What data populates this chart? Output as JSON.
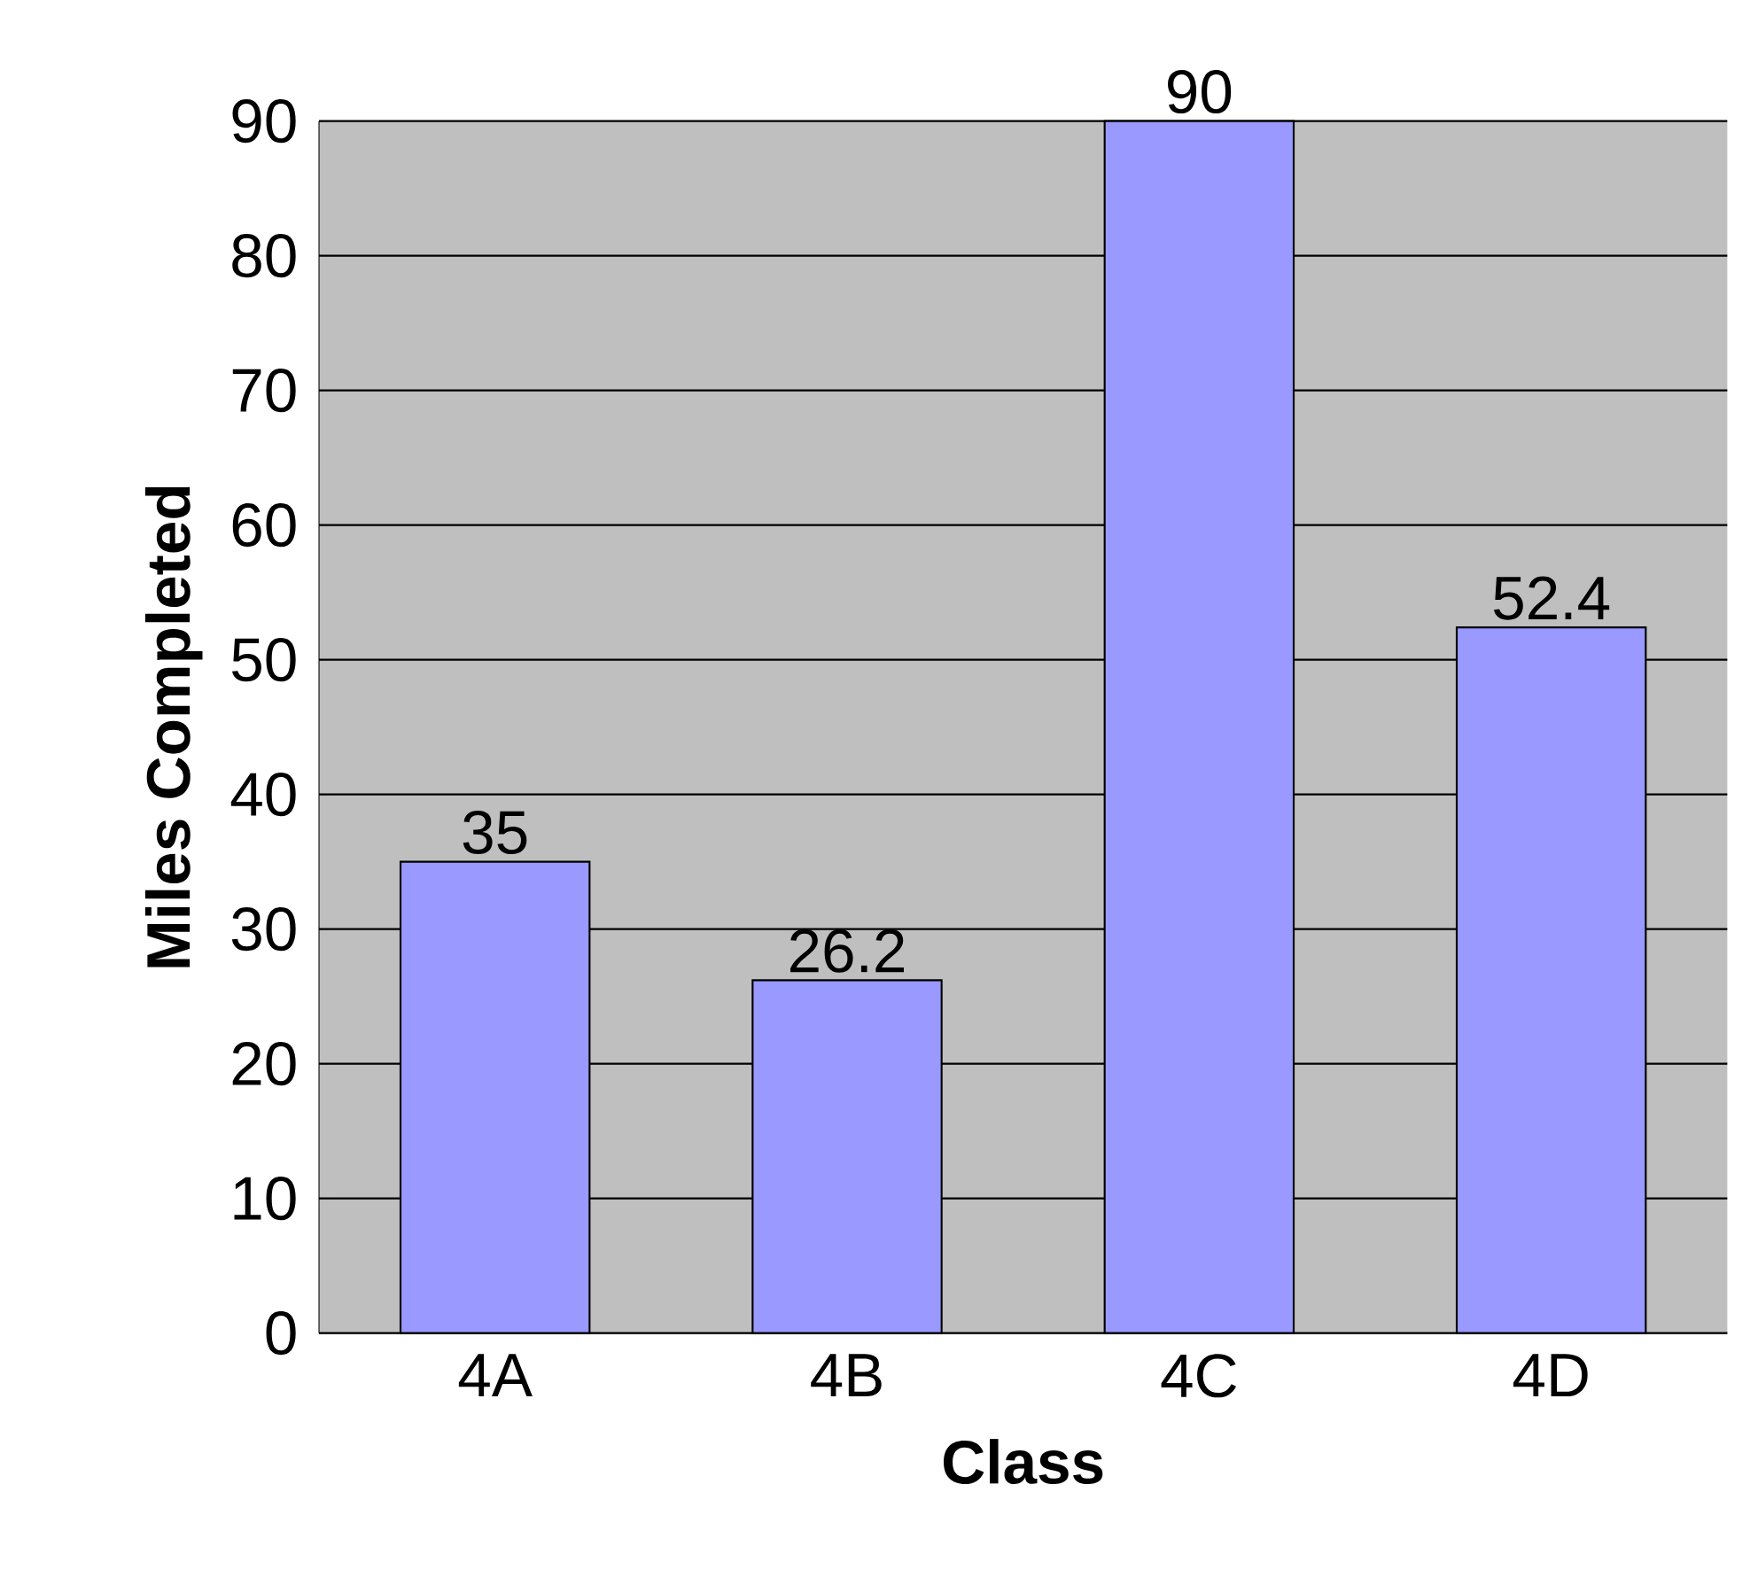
{
  "chart_data": {
    "type": "bar",
    "xlabel": "Class",
    "ylabel": "Miles Completed",
    "categories": [
      "4A",
      "4B",
      "4C",
      "4D"
    ],
    "values": [
      35,
      26.2,
      90,
      52.4
    ],
    "color": "#9999ff",
    "ylim": [
      0,
      90
    ],
    "yticks": [
      0,
      10,
      20,
      30,
      40,
      50,
      60,
      70,
      80,
      90
    ],
    "grid": "y",
    "data_labels": true
  }
}
